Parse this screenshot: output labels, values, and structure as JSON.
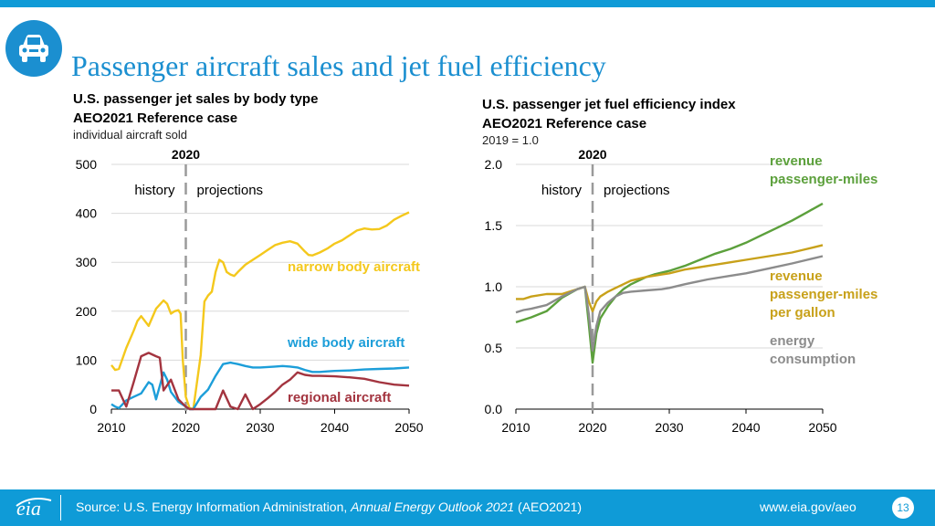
{
  "page": {
    "title": "Passenger aircraft sales and jet fuel efficiency",
    "logo_icon": "car-icon",
    "footer": {
      "source_prefix": "Source: U.S. Energy Information Administration, ",
      "source_title": "Annual Energy Outlook 2021",
      "source_suffix": " (AEO2021)",
      "eia": "eia",
      "website": "www.eia.gov/aeo",
      "page_number": "13"
    },
    "colors": {
      "brand": "#0f9bd7",
      "title": "#1b8fd0"
    }
  },
  "chart_data": [
    {
      "type": "line",
      "title": "U.S. passenger jet sales by body type",
      "subtitle": "AEO2021 Reference case",
      "units_note": "individual aircraft sold",
      "xlim": [
        2010,
        2050
      ],
      "ylim": [
        0,
        500
      ],
      "xticks": [
        2010,
        2020,
        2030,
        2040,
        2050
      ],
      "yticks": [
        0,
        100,
        200,
        300,
        400,
        500
      ],
      "divider": {
        "x": 2020,
        "label": "2020",
        "left_label": "history",
        "right_label": "projections"
      },
      "series": [
        {
          "name": "narrow body aircraft",
          "color": "#f4c81c",
          "points": [
            [
              2010,
              90
            ],
            [
              2010.5,
              80
            ],
            [
              2011,
              82
            ],
            [
              2012,
              125
            ],
            [
              2013,
              160
            ],
            [
              2013.5,
              180
            ],
            [
              2014,
              190
            ],
            [
              2015,
              170
            ],
            [
              2016,
              205
            ],
            [
              2017,
              222
            ],
            [
              2017.5,
              215
            ],
            [
              2018,
              195
            ],
            [
              2018.5,
              200
            ],
            [
              2019,
              202
            ],
            [
              2019.3,
              195
            ],
            [
              2019.6,
              100
            ],
            [
              2020,
              25
            ],
            [
              2020.5,
              2
            ],
            [
              2021,
              0
            ],
            [
              2022,
              110
            ],
            [
              2022.5,
              220
            ],
            [
              2023,
              232
            ],
            [
              2023.5,
              240
            ],
            [
              2024,
              280
            ],
            [
              2024.5,
              305
            ],
            [
              2025,
              300
            ],
            [
              2025.5,
              280
            ],
            [
              2026,
              275
            ],
            [
              2026.5,
              272
            ],
            [
              2027,
              280
            ],
            [
              2028,
              295
            ],
            [
              2029,
              305
            ],
            [
              2030,
              315
            ],
            [
              2031,
              325
            ],
            [
              2032,
              335
            ],
            [
              2033,
              340
            ],
            [
              2034,
              343
            ],
            [
              2035,
              338
            ],
            [
              2036,
              322
            ],
            [
              2036.5,
              315
            ],
            [
              2037,
              314
            ],
            [
              2038,
              320
            ],
            [
              2039,
              328
            ],
            [
              2040,
              338
            ],
            [
              2041,
              345
            ],
            [
              2042,
              355
            ],
            [
              2043,
              365
            ],
            [
              2044,
              369
            ],
            [
              2045,
              367
            ],
            [
              2046,
              368
            ],
            [
              2047,
              375
            ],
            [
              2048,
              387
            ],
            [
              2049,
              395
            ],
            [
              2050,
              402
            ]
          ]
        },
        {
          "name": "wide body aircraft",
          "color": "#1c9ed9",
          "points": [
            [
              2010,
              10
            ],
            [
              2010.5,
              5
            ],
            [
              2011,
              2
            ],
            [
              2012,
              18
            ],
            [
              2013,
              25
            ],
            [
              2014,
              32
            ],
            [
              2015,
              55
            ],
            [
              2015.5,
              50
            ],
            [
              2016,
              20
            ],
            [
              2017,
              75
            ],
            [
              2017.5,
              60
            ],
            [
              2018,
              35
            ],
            [
              2019,
              15
            ],
            [
              2020,
              5
            ],
            [
              2020.5,
              0
            ],
            [
              2021,
              0
            ],
            [
              2022,
              25
            ],
            [
              2023,
              40
            ],
            [
              2024,
              68
            ],
            [
              2025,
              92
            ],
            [
              2026,
              95
            ],
            [
              2027,
              92
            ],
            [
              2028,
              88
            ],
            [
              2029,
              85
            ],
            [
              2030,
              85
            ],
            [
              2031,
              86
            ],
            [
              2032,
              87
            ],
            [
              2033,
              88
            ],
            [
              2034,
              87
            ],
            [
              2035,
              85
            ],
            [
              2036,
              80
            ],
            [
              2037,
              76
            ],
            [
              2038,
              76
            ],
            [
              2039,
              77
            ],
            [
              2040,
              78
            ],
            [
              2042,
              79
            ],
            [
              2044,
              81
            ],
            [
              2046,
              82
            ],
            [
              2048,
              83
            ],
            [
              2050,
              85
            ]
          ]
        },
        {
          "name": "regional aircraft",
          "color": "#a3343f",
          "points": [
            [
              2010,
              38
            ],
            [
              2011,
              38
            ],
            [
              2012,
              5
            ],
            [
              2013,
              55
            ],
            [
              2014,
              108
            ],
            [
              2015,
              115
            ],
            [
              2016,
              108
            ],
            [
              2016.5,
              105
            ],
            [
              2017,
              38
            ],
            [
              2018,
              60
            ],
            [
              2019,
              20
            ],
            [
              2020,
              5
            ],
            [
              2020.5,
              0
            ],
            [
              2021,
              0
            ],
            [
              2022,
              0
            ],
            [
              2023,
              0
            ],
            [
              2024,
              0
            ],
            [
              2025,
              38
            ],
            [
              2026,
              5
            ],
            [
              2027,
              0
            ],
            [
              2028,
              30
            ],
            [
              2029,
              0
            ],
            [
              2030,
              10
            ],
            [
              2031,
              22
            ],
            [
              2032,
              35
            ],
            [
              2033,
              50
            ],
            [
              2034,
              60
            ],
            [
              2035,
              75
            ],
            [
              2036,
              70
            ],
            [
              2037,
              68
            ],
            [
              2038,
              68
            ],
            [
              2040,
              67
            ],
            [
              2042,
              65
            ],
            [
              2044,
              62
            ],
            [
              2046,
              55
            ],
            [
              2048,
              50
            ],
            [
              2050,
              48
            ]
          ]
        }
      ]
    },
    {
      "type": "line",
      "title": "U.S. passenger jet fuel efficiency index",
      "subtitle": "AEO2021 Reference case",
      "units_note": "2019 = 1.0",
      "xlim": [
        2010,
        2050
      ],
      "ylim": [
        0,
        2
      ],
      "xticks": [
        2010,
        2020,
        2030,
        2040,
        2050
      ],
      "yticks": [
        "0.0",
        "0.5",
        "1.0",
        "1.5",
        "2.0"
      ],
      "divider": {
        "x": 2020,
        "label": "2020",
        "left_label": "history",
        "right_label": "projections"
      },
      "series": [
        {
          "name": "revenue passenger-miles",
          "color": "#5ca03c",
          "points": [
            [
              2010,
              0.71
            ],
            [
              2012,
              0.75
            ],
            [
              2014,
              0.8
            ],
            [
              2016,
              0.91
            ],
            [
              2018,
              0.98
            ],
            [
              2019,
              1.0
            ],
            [
              2019.5,
              0.7
            ],
            [
              2020,
              0.38
            ],
            [
              2020.5,
              0.62
            ],
            [
              2021,
              0.74
            ],
            [
              2022,
              0.84
            ],
            [
              2023,
              0.92
            ],
            [
              2024,
              0.98
            ],
            [
              2025,
              1.02
            ],
            [
              2026,
              1.05
            ],
            [
              2027,
              1.08
            ],
            [
              2028,
              1.1
            ],
            [
              2030,
              1.13
            ],
            [
              2032,
              1.17
            ],
            [
              2034,
              1.22
            ],
            [
              2036,
              1.27
            ],
            [
              2038,
              1.31
            ],
            [
              2040,
              1.36
            ],
            [
              2042,
              1.42
            ],
            [
              2044,
              1.48
            ],
            [
              2046,
              1.54
            ],
            [
              2048,
              1.61
            ],
            [
              2050,
              1.68
            ]
          ]
        },
        {
          "name": "revenue passenger-miles per gallon",
          "color": "#c8a11a",
          "points": [
            [
              2010,
              0.9
            ],
            [
              2011,
              0.9
            ],
            [
              2012,
              0.92
            ],
            [
              2014,
              0.94
            ],
            [
              2016,
              0.94
            ],
            [
              2018,
              0.98
            ],
            [
              2019,
              1.0
            ],
            [
              2019.5,
              0.88
            ],
            [
              2020,
              0.8
            ],
            [
              2020.5,
              0.88
            ],
            [
              2021,
              0.92
            ],
            [
              2022,
              0.96
            ],
            [
              2023,
              0.99
            ],
            [
              2024,
              1.02
            ],
            [
              2025,
              1.05
            ],
            [
              2027,
              1.08
            ],
            [
              2029,
              1.1
            ],
            [
              2030,
              1.11
            ],
            [
              2032,
              1.14
            ],
            [
              2035,
              1.17
            ],
            [
              2038,
              1.2
            ],
            [
              2040,
              1.22
            ],
            [
              2043,
              1.25
            ],
            [
              2046,
              1.28
            ],
            [
              2048,
              1.31
            ],
            [
              2050,
              1.34
            ]
          ]
        },
        {
          "name": "energy consumption",
          "color": "#8c8c8c",
          "points": [
            [
              2010,
              0.79
            ],
            [
              2011,
              0.81
            ],
            [
              2012,
              0.82
            ],
            [
              2014,
              0.85
            ],
            [
              2016,
              0.92
            ],
            [
              2018,
              0.98
            ],
            [
              2019,
              1.0
            ],
            [
              2019.5,
              0.78
            ],
            [
              2020,
              0.48
            ],
            [
              2020.5,
              0.68
            ],
            [
              2021,
              0.8
            ],
            [
              2022,
              0.87
            ],
            [
              2023,
              0.92
            ],
            [
              2024,
              0.95
            ],
            [
              2025,
              0.96
            ],
            [
              2027,
              0.97
            ],
            [
              2029,
              0.98
            ],
            [
              2030,
              0.99
            ],
            [
              2032,
              1.02
            ],
            [
              2035,
              1.06
            ],
            [
              2038,
              1.09
            ],
            [
              2040,
              1.11
            ],
            [
              2043,
              1.15
            ],
            [
              2046,
              1.19
            ],
            [
              2048,
              1.22
            ],
            [
              2050,
              1.25
            ]
          ]
        }
      ]
    }
  ]
}
